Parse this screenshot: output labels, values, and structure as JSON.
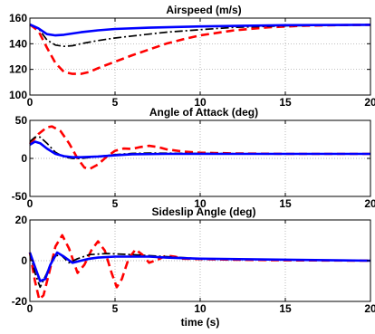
{
  "chart_data": [
    {
      "type": "line",
      "title": "Airspeed (m/s)",
      "xlabel": "",
      "ylabel": "",
      "xlim": [
        0,
        20
      ],
      "ylim": [
        100,
        160
      ],
      "xticks": [
        0,
        5,
        10,
        15,
        20
      ],
      "yticks": [
        100,
        120,
        140,
        160
      ],
      "grid": true,
      "colors": [
        "#0000ff",
        "#000000",
        "#ff0000"
      ],
      "series": [
        {
          "values": [
            [
              0,
              155
            ],
            [
              0.5,
              152
            ],
            [
              1,
              147.5
            ],
            [
              1.5,
              146.5
            ],
            [
              2,
              147
            ],
            [
              3,
              149
            ],
            [
              4,
              150.5
            ],
            [
              5,
              151.5
            ],
            [
              7,
              152.5
            ],
            [
              10,
              153.5
            ],
            [
              15,
              154.5
            ],
            [
              20,
              154.8
            ]
          ]
        },
        {
          "values": [
            [
              0,
              155
            ],
            [
              0.5,
              152
            ],
            [
              1,
              143
            ],
            [
              1.5,
              139
            ],
            [
              2,
              138
            ],
            [
              2.5,
              138.5
            ],
            [
              3,
              140
            ],
            [
              4,
              142.5
            ],
            [
              5,
              144.5
            ],
            [
              6,
              146
            ],
            [
              8,
              149
            ],
            [
              10,
              151
            ],
            [
              12,
              152.8
            ],
            [
              15,
              154
            ],
            [
              20,
              154.8
            ]
          ]
        },
        {
          "values": [
            [
              0,
              155
            ],
            [
              0.5,
              150
            ],
            [
              1,
              137
            ],
            [
              1.5,
              125
            ],
            [
              2,
              118
            ],
            [
              2.5,
              116.5
            ],
            [
              3,
              116.5
            ],
            [
              3.5,
              118
            ],
            [
              4,
              121
            ],
            [
              5,
              126
            ],
            [
              6,
              131
            ],
            [
              7,
              135.5
            ],
            [
              8,
              140
            ],
            [
              9,
              143.5
            ],
            [
              10,
              146.5
            ],
            [
              12,
              150.5
            ],
            [
              14,
              152.8
            ],
            [
              16,
              154
            ],
            [
              18,
              154.5
            ],
            [
              20,
              154.8
            ]
          ]
        }
      ]
    },
    {
      "type": "line",
      "title": "Angle of Attack (deg)",
      "xlabel": "",
      "ylabel": "",
      "xlim": [
        0,
        20
      ],
      "ylim": [
        -50,
        50
      ],
      "xticks": [
        0,
        5,
        10,
        15,
        20
      ],
      "yticks": [
        -50,
        0,
        50
      ],
      "grid": true,
      "colors": [
        "#0000ff",
        "#000000",
        "#ff0000"
      ],
      "series": [
        {
          "values": [
            [
              0,
              18
            ],
            [
              0.3,
              22
            ],
            [
              0.6,
              20
            ],
            [
              1,
              13
            ],
            [
              1.5,
              6
            ],
            [
              2,
              3
            ],
            [
              2.5,
              1.5
            ],
            [
              3,
              1.5
            ],
            [
              4,
              2.5
            ],
            [
              5,
              4
            ],
            [
              6,
              5.5
            ],
            [
              8,
              6
            ],
            [
              10,
              6
            ],
            [
              15,
              6
            ],
            [
              20,
              6
            ]
          ]
        },
        {
          "values": [
            [
              0,
              22
            ],
            [
              0.3,
              28
            ],
            [
              0.6,
              28
            ],
            [
              1,
              20
            ],
            [
              1.5,
              8
            ],
            [
              2,
              2
            ],
            [
              2.5,
              0
            ],
            [
              3,
              0
            ],
            [
              4,
              2.5
            ],
            [
              5,
              5
            ],
            [
              6,
              6.5
            ],
            [
              7,
              7
            ],
            [
              10,
              6.5
            ],
            [
              15,
              6
            ],
            [
              20,
              6
            ]
          ]
        },
        {
          "values": [
            [
              0,
              19
            ],
            [
              0.5,
              32
            ],
            [
              1,
              41
            ],
            [
              1.3,
              42
            ],
            [
              1.8,
              36
            ],
            [
              2.3,
              20
            ],
            [
              2.8,
              0
            ],
            [
              3.2,
              -12
            ],
            [
              3.5,
              -14
            ],
            [
              4,
              -8
            ],
            [
              4.5,
              2
            ],
            [
              5,
              10
            ],
            [
              5.5,
              13
            ],
            [
              6,
              12.5
            ],
            [
              6.5,
              15
            ],
            [
              7,
              16.5
            ],
            [
              7.5,
              15
            ],
            [
              8,
              12
            ],
            [
              9,
              9
            ],
            [
              10,
              7.5
            ],
            [
              12,
              6.5
            ],
            [
              15,
              6
            ],
            [
              20,
              6
            ]
          ]
        }
      ]
    },
    {
      "type": "line",
      "title": "Sideslip Angle (deg)",
      "xlabel": "time (s)",
      "ylabel": "",
      "xlim": [
        0,
        20
      ],
      "ylim": [
        -20,
        20
      ],
      "xticks": [
        0,
        5,
        10,
        15,
        20
      ],
      "yticks": [
        -20,
        0,
        20
      ],
      "grid": true,
      "colors": [
        "#0000ff",
        "#000000",
        "#ff0000"
      ],
      "series": [
        {
          "values": [
            [
              0,
              4
            ],
            [
              0.3,
              -3
            ],
            [
              0.6,
              -10
            ],
            [
              0.9,
              -9
            ],
            [
              1.2,
              -2
            ],
            [
              1.6,
              4
            ],
            [
              2,
              2
            ],
            [
              2.5,
              -1
            ],
            [
              3,
              0
            ],
            [
              3.5,
              1
            ],
            [
              4,
              1.5
            ],
            [
              5,
              2
            ],
            [
              6,
              2
            ],
            [
              7,
              2
            ],
            [
              8,
              1.5
            ],
            [
              10,
              1
            ],
            [
              15,
              0.5
            ],
            [
              20,
              0
            ]
          ]
        },
        {
          "values": [
            [
              0,
              4
            ],
            [
              0.3,
              -6
            ],
            [
              0.6,
              -13
            ],
            [
              1,
              -6
            ],
            [
              1.4,
              2
            ],
            [
              1.8,
              3
            ],
            [
              2.3,
              -1
            ],
            [
              2.8,
              1
            ],
            [
              3.5,
              3
            ],
            [
              4.5,
              3.5
            ],
            [
              6,
              3
            ],
            [
              8,
              2
            ],
            [
              10,
              1
            ],
            [
              15,
              0.5
            ],
            [
              20,
              0
            ]
          ]
        },
        {
          "values": [
            [
              0,
              4
            ],
            [
              0.3,
              -10
            ],
            [
              0.55,
              -19
            ],
            [
              0.8,
              -17
            ],
            [
              1.1,
              -7
            ],
            [
              1.5,
              7
            ],
            [
              1.9,
              12.5
            ],
            [
              2.3,
              6
            ],
            [
              2.8,
              -6
            ],
            [
              3.2,
              -2
            ],
            [
              3.6,
              5
            ],
            [
              4,
              9.5
            ],
            [
              4.4,
              5
            ],
            [
              4.8,
              -6
            ],
            [
              5.1,
              -13
            ],
            [
              5.4,
              -9
            ],
            [
              5.8,
              1
            ],
            [
              6.2,
              5.5
            ],
            [
              6.6,
              3
            ],
            [
              7,
              -1
            ],
            [
              7.5,
              0.5
            ],
            [
              8,
              2.5
            ],
            [
              8.5,
              2
            ],
            [
              9,
              1
            ],
            [
              10,
              0.8
            ],
            [
              12,
              0.5
            ],
            [
              15,
              0.2
            ],
            [
              20,
              0
            ]
          ]
        }
      ]
    }
  ]
}
